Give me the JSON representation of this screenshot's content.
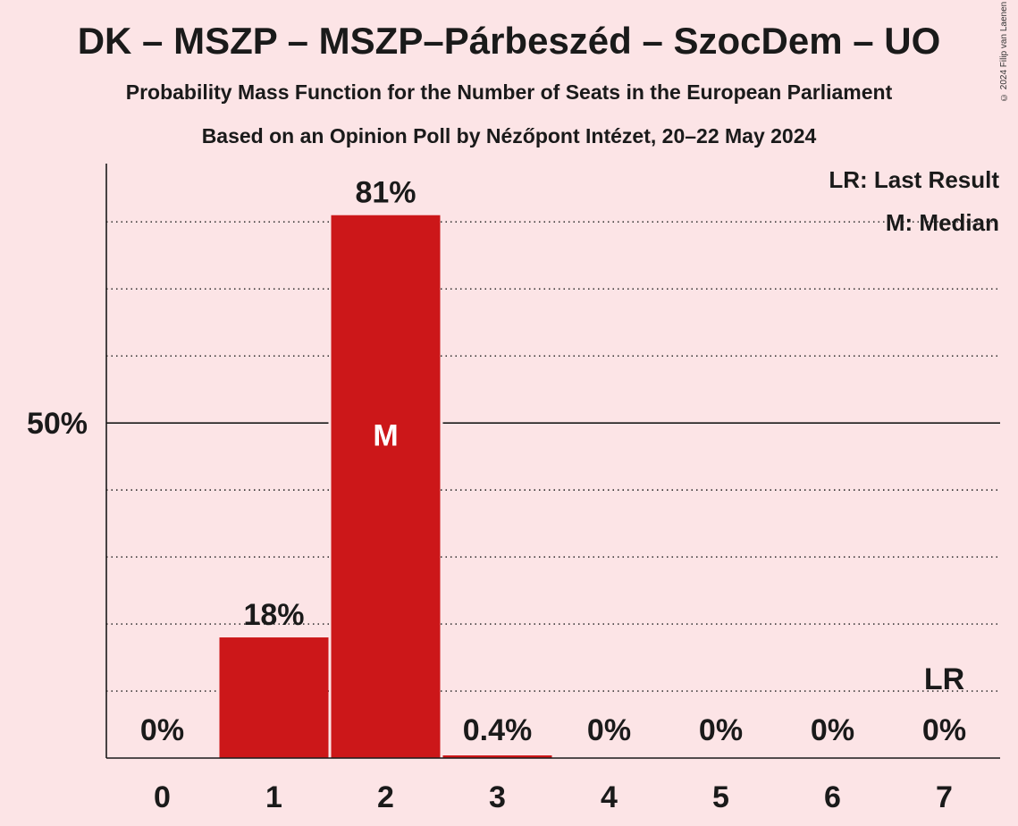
{
  "title": "DK – MSZP – MSZP–Párbeszéd – SzocDem – UO",
  "subtitle": "Probability Mass Function for the Number of Seats in the European Parliament",
  "subtitle2": "Based on an Opinion Poll by Nézőpont Intézet, 20–22 May 2024",
  "copyright": "© 2024 Filip van Laenen",
  "colors": {
    "background": "#fce4e6",
    "bar": "#cc1719",
    "text": "#1a1a1a"
  },
  "chart_data": {
    "type": "bar",
    "categories": [
      "0",
      "1",
      "2",
      "3",
      "4",
      "5",
      "6",
      "7"
    ],
    "values": [
      0,
      18,
      81,
      0.4,
      0,
      0,
      0,
      0
    ],
    "value_labels": [
      "0%",
      "18%",
      "81%",
      "0.4%",
      "0%",
      "0%",
      "0%",
      "0%"
    ],
    "ylim": [
      0,
      88.7
    ],
    "y_tick": 50,
    "y_tick_label": "50%",
    "gridlines_dotted": [
      10,
      20,
      30,
      40,
      60,
      70,
      80
    ],
    "median_index": 2,
    "median_marker": "M",
    "last_result_index": 7,
    "last_result_marker": "LR",
    "legend": {
      "position": "top-right",
      "items": [
        "LR: Last Result",
        "M: Median"
      ]
    }
  }
}
